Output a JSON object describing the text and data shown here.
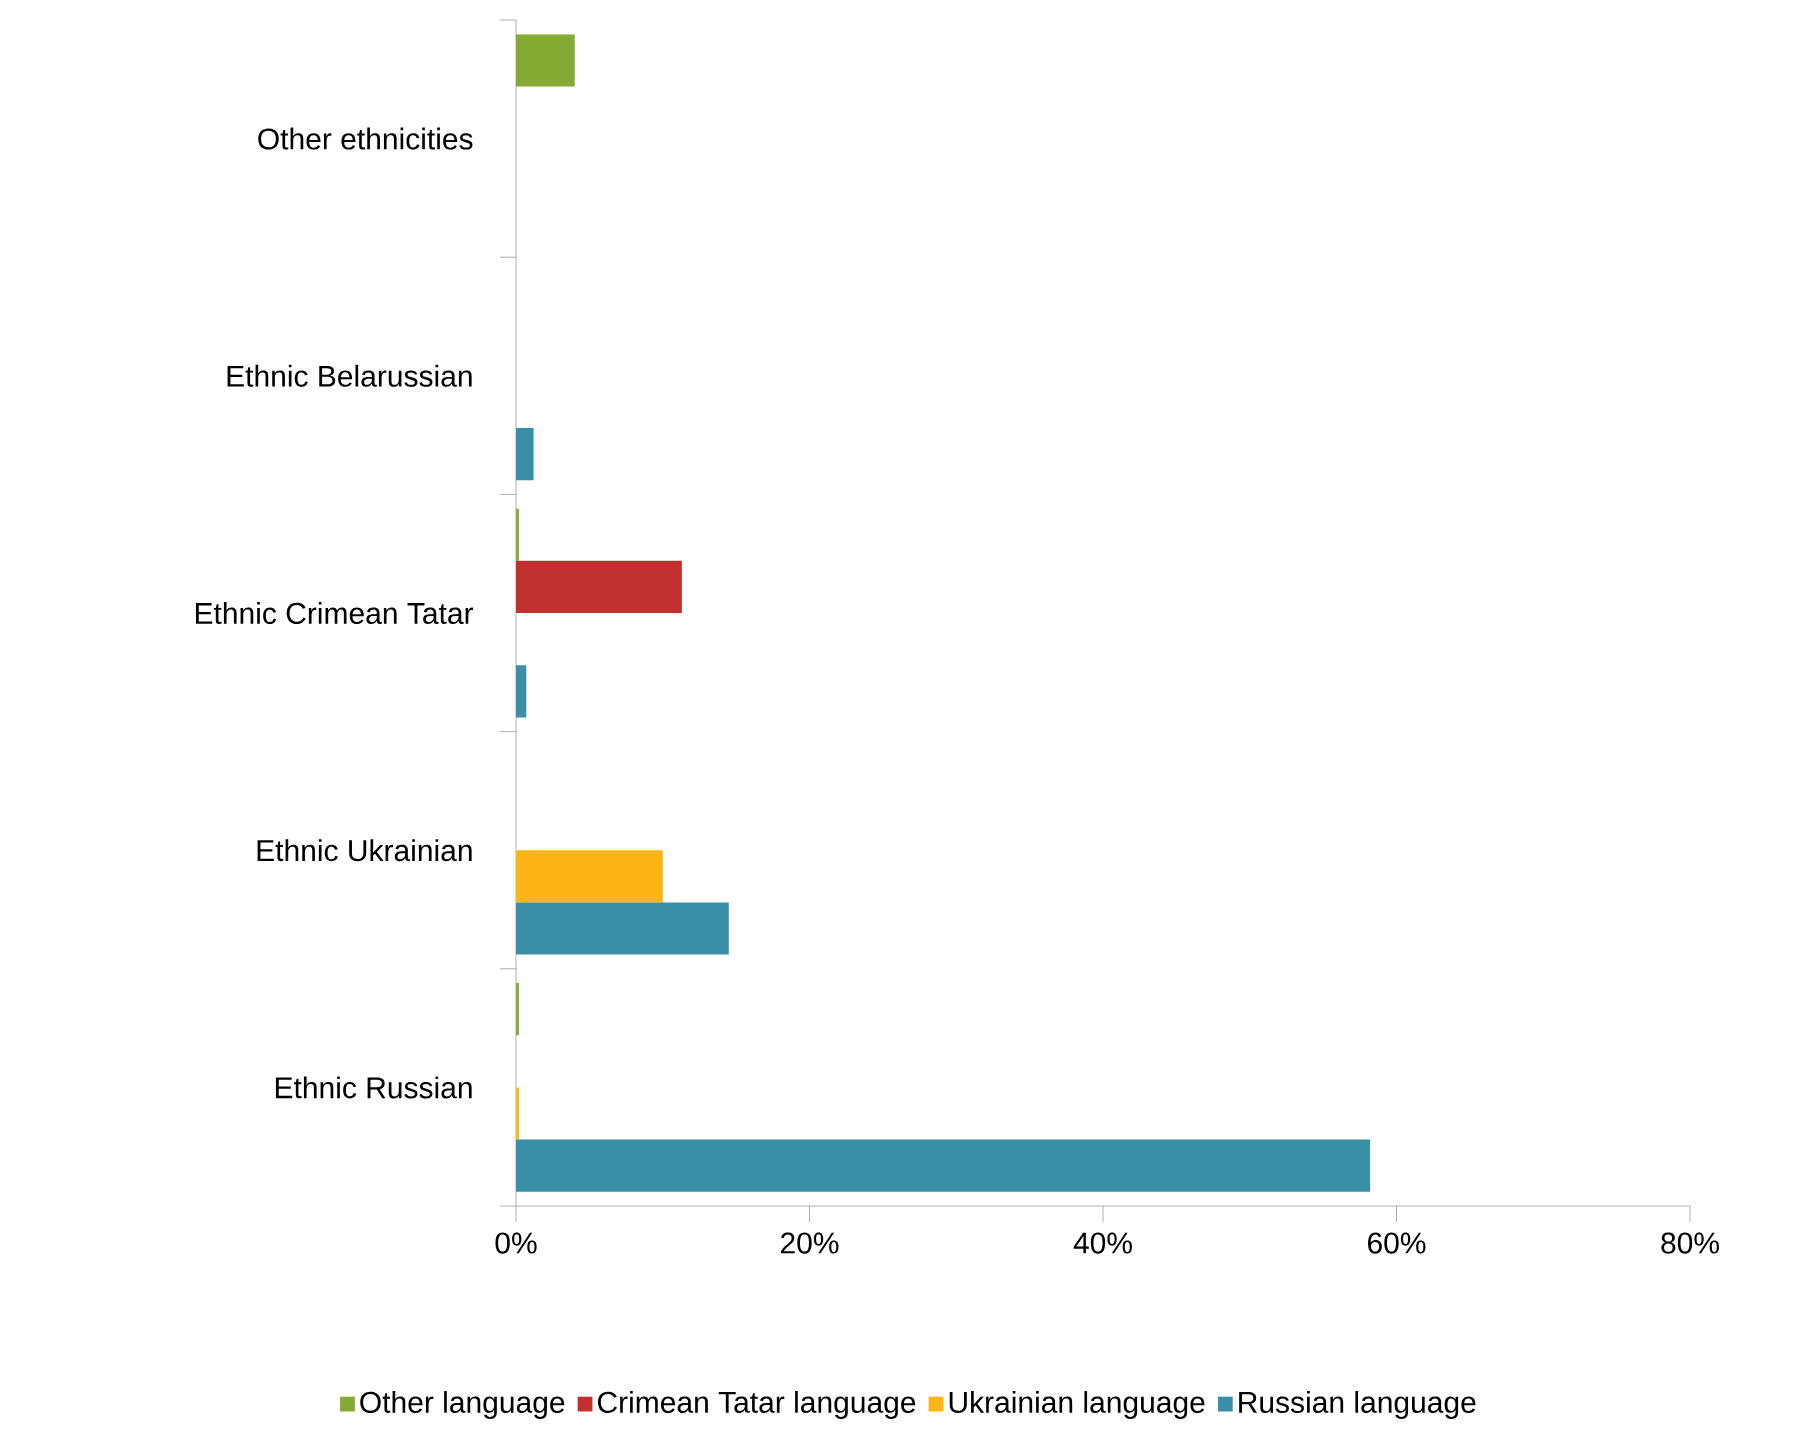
{
  "chart_data": {
    "type": "bar",
    "orientation": "horizontal",
    "categories": [
      "Other ethnicities",
      "Ethnic Belarussian",
      "Ethnic Crimean Tatar",
      "Ethnic Ukrainian",
      "Ethnic Russian"
    ],
    "series": [
      {
        "name": "Other language",
        "color": "#83aa33",
        "values": [
          4.0,
          null,
          0.2,
          null,
          0.2
        ]
      },
      {
        "name": "Crimean Tatar language",
        "color": "#c0302e",
        "values": [
          null,
          null,
          11.3,
          null,
          null
        ]
      },
      {
        "name": "Ukrainian language",
        "color": "#fdb515",
        "values": [
          null,
          null,
          null,
          10.0,
          0.2
        ]
      },
      {
        "name": "Russian language",
        "color": "#3a8fa6",
        "values": [
          null,
          1.2,
          0.7,
          14.5,
          58.2
        ]
      }
    ],
    "xlim": [
      0,
      80
    ],
    "xticks": [
      {
        "value": 0,
        "label": "0%"
      },
      {
        "value": 20,
        "label": "20%"
      },
      {
        "value": 40,
        "label": "40%"
      },
      {
        "value": 60,
        "label": "60%"
      },
      {
        "value": 80,
        "label": "80%"
      }
    ],
    "grid": false,
    "legend": "bottom"
  }
}
